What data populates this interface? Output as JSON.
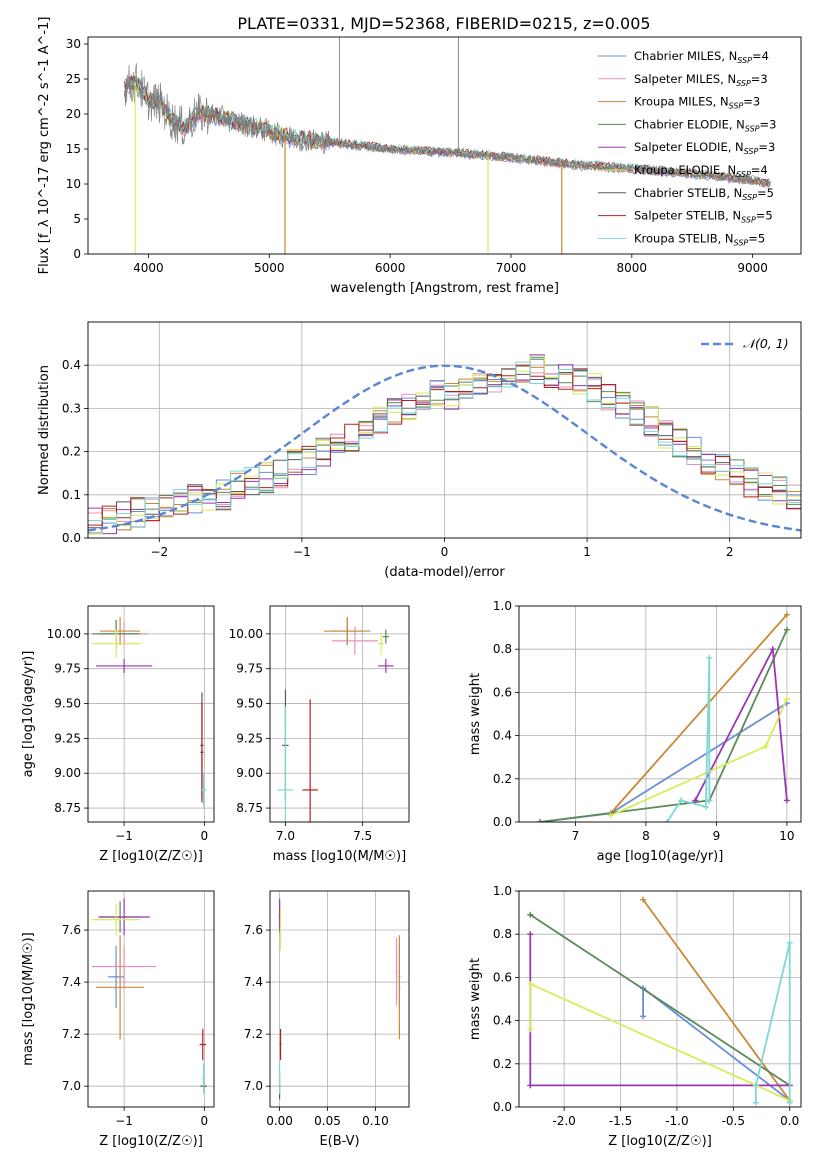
{
  "figure": {
    "title": "PLATE=0331, MJD=52368, FIBERID=0215, z=0.005"
  },
  "models": [
    {
      "name": "Chabrier MILES",
      "nssp": "4",
      "color": "#6a8fd6"
    },
    {
      "name": "Salpeter MILES",
      "nssp": "3",
      "color": "#e590bf"
    },
    {
      "name": "Kroupa MILES",
      "nssp": "3",
      "color": "#c88a35"
    },
    {
      "name": "Chabrier ELODIE",
      "nssp": "3",
      "color": "#5a8a5a"
    },
    {
      "name": "Salpeter ELODIE",
      "nssp": "3",
      "color": "#9b37b2"
    },
    {
      "name": "Kroupa ELODIE",
      "nssp": "4",
      "color": "#d8ec5a"
    },
    {
      "name": "Chabrier STELIB",
      "nssp": "5",
      "color": "#595959"
    },
    {
      "name": "Salpeter STELIB",
      "nssp": "5",
      "color": "#b22020"
    },
    {
      "name": "Kroupa STELIB",
      "nssp": "5",
      "color": "#7fd6d6"
    }
  ],
  "chart_data": [
    {
      "type": "line",
      "id": "spectrum",
      "xlabel": "wavelength [Angstrom, rest frame]",
      "ylabel": "Flux [f_λ 10^-17 erg cm^-2 s^-1 A^-1]",
      "xlim": [
        3500,
        9400
      ],
      "ylim": [
        0,
        31
      ],
      "xticks": [
        4000,
        5000,
        6000,
        7000,
        8000,
        9000
      ],
      "yticks": [
        0,
        5,
        10,
        15,
        20,
        25,
        30
      ],
      "grid": false,
      "legend": "top-right",
      "data_color": "#808080",
      "continuum": {
        "x": [
          3800,
          3900,
          4000,
          4100,
          4200,
          4300,
          4400,
          4500,
          4700,
          5000,
          5200,
          5500,
          6000,
          6500,
          7000,
          7500,
          8000,
          8500,
          9000,
          9150
        ],
        "y": [
          24,
          24.5,
          22,
          21.5,
          19,
          18,
          20,
          20,
          19,
          17.5,
          16.5,
          16,
          15,
          14.5,
          13.8,
          12.8,
          12.2,
          11.5,
          10.5,
          10
        ]
      },
      "notable_dips": [
        {
          "x": 3890,
          "y": 0,
          "model": "Kroupa ELODIE"
        },
        {
          "x": 5130,
          "y": 0,
          "model": "Kroupa MILES"
        },
        {
          "x": 6810,
          "y": 0,
          "model": "Kroupa ELODIE"
        },
        {
          "x": 7420,
          "y": 0,
          "model": "Kroupa MILES"
        }
      ],
      "emission_spikes": [
        {
          "x": 5580,
          "y": 31
        },
        {
          "x": 6565,
          "y": 31
        }
      ]
    },
    {
      "type": "line",
      "id": "residuals",
      "xlabel": "(data-model)/error",
      "ylabel": "Normed distribution",
      "xlim": [
        -2.5,
        2.5
      ],
      "ylim": [
        0,
        0.5
      ],
      "xticks": [
        -2,
        -1,
        0,
        1,
        2
      ],
      "yticks": [
        0.0,
        0.1,
        0.2,
        0.3,
        0.4
      ],
      "grid": true,
      "legend": "top-right",
      "gaussian_label": "𝒩(0, 1)",
      "gaussian_color": "#5a86d6",
      "bin_width": 0.1,
      "hist_base": [
        0.04,
        0.04,
        0.05,
        0.06,
        0.07,
        0.08,
        0.08,
        0.09,
        0.09,
        0.1,
        0.12,
        0.13,
        0.14,
        0.15,
        0.17,
        0.18,
        0.2,
        0.21,
        0.23,
        0.25,
        0.27,
        0.29,
        0.3,
        0.31,
        0.33,
        0.33,
        0.34,
        0.36,
        0.37,
        0.38,
        0.39,
        0.39,
        0.38,
        0.37,
        0.36,
        0.35,
        0.33,
        0.31,
        0.29,
        0.27,
        0.24,
        0.22,
        0.2,
        0.18,
        0.16,
        0.15,
        0.13,
        0.12,
        0.11,
        0.1
      ]
    },
    {
      "type": "scatter",
      "id": "age_vs_Z",
      "xlabel": "Z [log10(Z/Z☉)]",
      "ylabel": "age [log10(age/yr)]",
      "xlim": [
        -1.45,
        0.12
      ],
      "ylim": [
        8.65,
        10.2
      ],
      "xticks": [
        -1,
        0
      ],
      "yticks": [
        8.75,
        9.0,
        9.25,
        9.5,
        9.75,
        10.0
      ],
      "grid": true,
      "points": [
        {
          "model": "Chabrier MILES",
          "x": -1.1,
          "y": 10.0,
          "xe": 0.2,
          "ye": 0.1
        },
        {
          "model": "Salpeter MILES",
          "x": -1.0,
          "y": 10.0,
          "xe": 0.3,
          "ye": 0.08
        },
        {
          "model": "Kroupa MILES",
          "x": -1.05,
          "y": 10.02,
          "xe": 0.25,
          "ye": 0.1
        },
        {
          "model": "Chabrier ELODIE",
          "x": -1.1,
          "y": 10.0,
          "xe": 0.3,
          "ye": 0.1
        },
        {
          "model": "Salpeter ELODIE",
          "x": -1.0,
          "y": 9.77,
          "xe": 0.35,
          "ye": 0.05
        },
        {
          "model": "Kroupa ELODIE",
          "x": -1.1,
          "y": 9.93,
          "xe": 0.3,
          "ye": 0.1
        },
        {
          "model": "Chabrier STELIB",
          "x": -0.03,
          "y": 9.2,
          "xe": 0.02,
          "ye": 0.38
        },
        {
          "model": "Salpeter STELIB",
          "x": -0.03,
          "y": 9.15,
          "xe": 0.02,
          "ye": 0.36
        },
        {
          "model": "Kroupa STELIB",
          "x": -0.01,
          "y": 8.88,
          "xe": 0.04,
          "ye": 0.12
        }
      ]
    },
    {
      "type": "scatter",
      "id": "age_vs_mass",
      "xlabel": "mass [log10(M/M☉)]",
      "ylabel": "",
      "xlim": [
        6.9,
        7.8
      ],
      "ylim": [
        8.65,
        10.2
      ],
      "xticks": [
        7.0,
        7.5
      ],
      "yticks": [
        8.75,
        9.0,
        9.25,
        9.5,
        9.75,
        10.0
      ],
      "grid": true,
      "points": [
        {
          "model": "Chabrier MILES",
          "x": 7.4,
          "y": 10.02,
          "xe": 0.1,
          "ye": 0.1
        },
        {
          "model": "Salpeter MILES",
          "x": 7.45,
          "y": 9.95,
          "xe": 0.15,
          "ye": 0.1
        },
        {
          "model": "Kroupa MILES",
          "x": 7.4,
          "y": 10.02,
          "xe": 0.15,
          "ye": 0.1
        },
        {
          "model": "Chabrier ELODIE",
          "x": 7.65,
          "y": 9.98,
          "xe": 0.02,
          "ye": 0.05
        },
        {
          "model": "Salpeter ELODIE",
          "x": 7.65,
          "y": 9.77,
          "xe": 0.05,
          "ye": 0.05
        },
        {
          "model": "Kroupa ELODIE",
          "x": 7.62,
          "y": 9.93,
          "xe": 0.02,
          "ye": 0.08
        },
        {
          "model": "Chabrier STELIB",
          "x": 7.0,
          "y": 9.2,
          "xe": 0.02,
          "ye": 0.4
        },
        {
          "model": "Salpeter STELIB",
          "x": 7.16,
          "y": 8.88,
          "xe": 0.05,
          "ye": 0.65
        },
        {
          "model": "Kroupa STELIB",
          "x": 7.0,
          "y": 8.88,
          "xe": 0.05,
          "ye": 0.6
        }
      ]
    },
    {
      "type": "line",
      "id": "weight_vs_age",
      "xlabel": "age [log10(age/yr)]",
      "ylabel": "mass weight",
      "xlim": [
        6.2,
        10.2
      ],
      "ylim": [
        0,
        1.0
      ],
      "xticks": [
        7,
        8,
        9,
        10
      ],
      "yticks": [
        0.0,
        0.2,
        0.4,
        0.6,
        0.8,
        1.0
      ],
      "grid": true,
      "series": [
        {
          "model": "Chabrier MILES",
          "x": [
            6.5,
            7.5,
            10.0
          ],
          "y": [
            0.0,
            0.04,
            0.55
          ]
        },
        {
          "model": "Kroupa MILES",
          "x": [
            7.5,
            10.0
          ],
          "y": [
            0.04,
            0.96
          ]
        },
        {
          "model": "Chabrier ELODIE",
          "x": [
            6.5,
            8.9,
            10.0
          ],
          "y": [
            0.0,
            0.1,
            0.89
          ]
        },
        {
          "model": "Salpeter ELODIE",
          "x": [
            8.7,
            9.8,
            10.0
          ],
          "y": [
            0.1,
            0.8,
            0.1
          ]
        },
        {
          "model": "Kroupa ELODIE",
          "x": [
            7.5,
            9.7,
            10.0
          ],
          "y": [
            0.03,
            0.35,
            0.57
          ]
        },
        {
          "model": "Kroupa STELIB",
          "x": [
            8.3,
            8.5,
            8.85,
            8.9,
            8.9
          ],
          "y": [
            0.0,
            0.1,
            0.07,
            0.76,
            0.1
          ]
        }
      ]
    },
    {
      "type": "scatter",
      "id": "mass_vs_Z",
      "xlabel": "Z [log10(Z/Z☉)]",
      "ylabel": "mass [log10(M/M☉)]",
      "xlim": [
        -1.45,
        0.12
      ],
      "ylim": [
        6.92,
        7.75
      ],
      "xticks": [
        -1,
        0
      ],
      "yticks": [
        7.0,
        7.2,
        7.4,
        7.6
      ],
      "grid": true,
      "points": [
        {
          "model": "Chabrier MILES",
          "x": -1.1,
          "y": 7.42,
          "xe": 0.1,
          "ye": 0.12
        },
        {
          "model": "Salpeter MILES",
          "x": -1.0,
          "y": 7.46,
          "xe": 0.4,
          "ye": 0.08
        },
        {
          "model": "Kroupa MILES",
          "x": -1.05,
          "y": 7.38,
          "xe": 0.3,
          "ye": 0.2
        },
        {
          "model": "Chabrier ELODIE",
          "x": -1.05,
          "y": 7.65,
          "xe": 0.25,
          "ye": 0.06
        },
        {
          "model": "Salpeter ELODIE",
          "x": -1.0,
          "y": 7.65,
          "xe": 0.32,
          "ye": 0.07
        },
        {
          "model": "Kroupa ELODIE",
          "x": -1.1,
          "y": 7.64,
          "xe": 0.3,
          "ye": 0.06
        },
        {
          "model": "Chabrier STELIB",
          "x": -0.01,
          "y": 7.0,
          "xe": 0.04,
          "ye": 0.02
        },
        {
          "model": "Salpeter STELIB",
          "x": -0.02,
          "y": 7.16,
          "xe": 0.04,
          "ye": 0.06
        },
        {
          "model": "Kroupa STELIB",
          "x": -0.01,
          "y": 7.03,
          "xe": 0.02,
          "ye": 0.06
        }
      ]
    },
    {
      "type": "scatter",
      "id": "mass_vs_ebv",
      "xlabel": "E(B-V)",
      "ylabel": "",
      "xlim": [
        -0.01,
        0.135
      ],
      "ylim": [
        6.92,
        7.75
      ],
      "xticks": [
        0.0,
        0.05,
        0.1
      ],
      "yticks": [
        7.0,
        7.2,
        7.4,
        7.6
      ],
      "grid": true,
      "points": [
        {
          "model": "Chabrier MILES",
          "x": 0.125,
          "y": 7.42,
          "xe": 0.001,
          "ye": 0.12
        },
        {
          "model": "Salpeter MILES",
          "x": 0.122,
          "y": 7.44,
          "xe": 0.001,
          "ye": 0.13
        },
        {
          "model": "Kroupa MILES",
          "x": 0.125,
          "y": 7.38,
          "xe": 0.001,
          "ye": 0.2
        },
        {
          "model": "Chabrier ELODIE",
          "x": 0.0,
          "y": 7.65,
          "xe": 0.001,
          "ye": 0.06
        },
        {
          "model": "Salpeter ELODIE",
          "x": 0.0,
          "y": 7.66,
          "xe": 0.001,
          "ye": 0.06
        },
        {
          "model": "Kroupa ELODIE",
          "x": 0.001,
          "y": 7.6,
          "xe": 0.001,
          "ye": 0.08
        },
        {
          "model": "Chabrier STELIB",
          "x": 0.0,
          "y": 7.0,
          "xe": 0.001,
          "ye": 0.05
        },
        {
          "model": "Salpeter STELIB",
          "x": 0.001,
          "y": 7.16,
          "xe": 0.001,
          "ye": 0.06
        },
        {
          "model": "Kroupa STELIB",
          "x": 0.0,
          "y": 7.03,
          "xe": 0.001,
          "ye": 0.06
        }
      ]
    },
    {
      "type": "line",
      "id": "weight_vs_Z",
      "xlabel": "Z [log10(Z/Z☉)]",
      "ylabel": "mass weight",
      "xlim": [
        -2.4,
        0.1
      ],
      "ylim": [
        0,
        1.0
      ],
      "xticks": [
        -2.0,
        -1.5,
        -1.0,
        -0.5,
        0.0
      ],
      "yticks": [
        0.0,
        0.2,
        0.4,
        0.6,
        0.8,
        1.0
      ],
      "grid": true,
      "series": [
        {
          "model": "Chabrier MILES",
          "x": [
            -1.3,
            -1.3,
            0.0
          ],
          "y": [
            0.42,
            0.55,
            0.03
          ]
        },
        {
          "model": "Kroupa MILES",
          "x": [
            -1.3,
            0.0
          ],
          "y": [
            0.96,
            0.03
          ]
        },
        {
          "model": "Chabrier ELODIE",
          "x": [
            -2.3,
            0.0
          ],
          "y": [
            0.89,
            0.1
          ]
        },
        {
          "model": "Salpeter ELODIE",
          "x": [
            -2.3,
            -2.3,
            0.0
          ],
          "y": [
            0.8,
            0.1,
            0.1
          ]
        },
        {
          "model": "Kroupa ELODIE",
          "x": [
            -2.3,
            -2.3,
            0.0
          ],
          "y": [
            0.36,
            0.57,
            0.03
          ]
        },
        {
          "model": "Kroupa STELIB",
          "x": [
            -0.3,
            -0.3,
            0.0,
            0.0
          ],
          "y": [
            0.02,
            0.1,
            0.76,
            0.02
          ]
        }
      ]
    }
  ]
}
